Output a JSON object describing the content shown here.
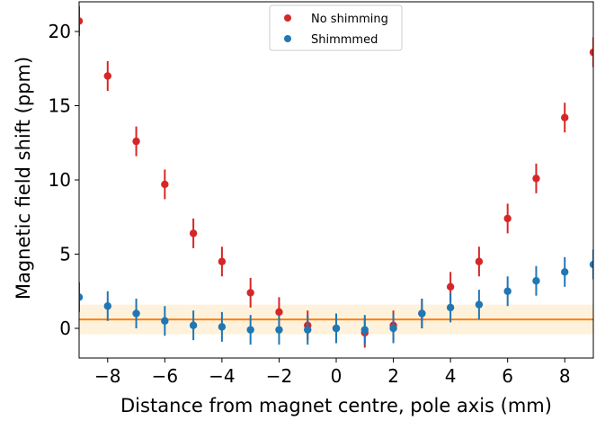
{
  "chart_data": {
    "type": "scatter",
    "title": "",
    "xlabel": "Distance from magnet centre, pole axis (mm)",
    "ylabel": "Magnetic field shift (ppm)",
    "xlim": [
      -9,
      9
    ],
    "ylim": [
      -2,
      22
    ],
    "xticks": [
      -8,
      -6,
      -4,
      -2,
      0,
      2,
      4,
      6,
      8
    ],
    "xtick_labels": [
      "−8",
      "−6",
      "−4",
      "−2",
      "0",
      "2",
      "4",
      "6",
      "8"
    ],
    "yticks": [
      0,
      5,
      10,
      15,
      20
    ],
    "ytick_labels": [
      "0",
      "5",
      "10",
      "15",
      "20"
    ],
    "grid": false,
    "legend": "top-center",
    "reference_line": {
      "y": 0.6,
      "band": [
        -0.4,
        1.6
      ],
      "color": "#ff7f0e",
      "band_color": "#fff2dc"
    },
    "series": [
      {
        "name": "No shimming",
        "color": "#d62728",
        "x": [
          -9,
          -8,
          -7,
          -6,
          -5,
          -4,
          -3,
          -2,
          -1,
          0,
          1,
          2,
          3,
          4,
          5,
          6,
          7,
          8,
          9
        ],
        "y": [
          20.7,
          17.0,
          12.6,
          9.7,
          6.4,
          4.5,
          2.4,
          1.1,
          0.2,
          0.0,
          -0.3,
          0.2,
          1.0,
          2.8,
          4.5,
          7.4,
          10.1,
          14.2,
          18.6
        ],
        "yerr": [
          1.0,
          1.0,
          1.0,
          1.0,
          1.0,
          1.0,
          1.0,
          1.0,
          1.0,
          1.0,
          1.0,
          1.0,
          1.0,
          1.0,
          1.0,
          1.0,
          1.0,
          1.0,
          1.0
        ]
      },
      {
        "name": "Shimmmed",
        "color": "#1f77b4",
        "x": [
          -9,
          -8,
          -7,
          -6,
          -5,
          -4,
          -3,
          -2,
          -1,
          0,
          1,
          2,
          3,
          4,
          5,
          6,
          7,
          8,
          9
        ],
        "y": [
          2.1,
          1.5,
          1.0,
          0.5,
          0.2,
          0.1,
          -0.1,
          -0.1,
          -0.1,
          0.0,
          -0.1,
          0.0,
          1.0,
          1.4,
          1.6,
          2.5,
          3.2,
          3.8,
          4.3
        ],
        "yerr": [
          1.0,
          1.0,
          1.0,
          1.0,
          1.0,
          1.0,
          1.0,
          1.0,
          1.0,
          1.0,
          1.0,
          1.0,
          1.0,
          1.0,
          1.0,
          1.0,
          1.0,
          1.0,
          1.0
        ]
      }
    ]
  }
}
